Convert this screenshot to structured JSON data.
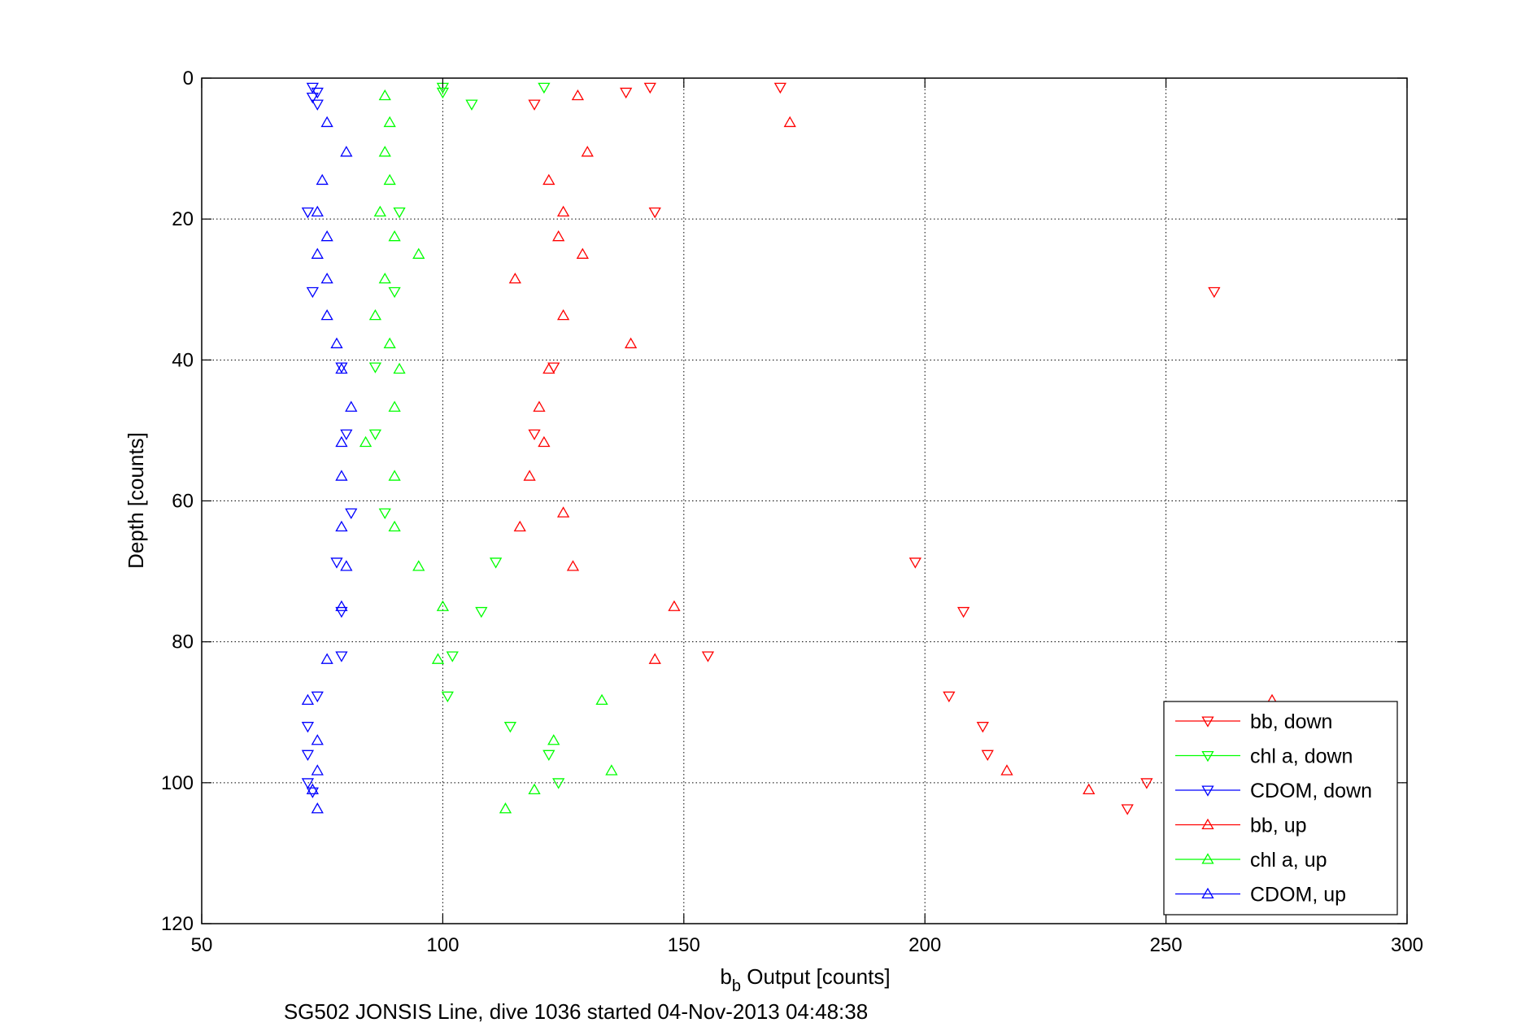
{
  "chart_data": {
    "type": "scatter",
    "title": "",
    "caption": "SG502 JONSIS Line, dive 1036 started 04-Nov-2013 04:48:38",
    "xlabel_main": "b",
    "xlabel_sub": "b",
    "xlabel_rest": " Output [counts]",
    "ylabel": "Depth [counts]",
    "xlim": [
      50,
      300
    ],
    "ylim": [
      0,
      120
    ],
    "y_reversed": true,
    "grid": true,
    "legend_position": "bottom-right",
    "xticks": [
      50,
      100,
      150,
      200,
      250,
      300
    ],
    "yticks": [
      0,
      20,
      40,
      60,
      80,
      100,
      120
    ],
    "series": [
      {
        "name": "bb, down",
        "color": "#ff0000",
        "marker": "triangle-down",
        "points": [
          [
            143,
            1.3
          ],
          [
            170,
            1.3
          ],
          [
            138,
            2.0
          ],
          [
            119,
            3.7
          ],
          [
            144,
            19.0
          ],
          [
            260,
            30.3
          ],
          [
            123,
            41.0
          ],
          [
            119,
            50.5
          ],
          [
            198,
            68.7
          ],
          [
            208,
            75.7
          ],
          [
            155,
            82.0
          ],
          [
            205,
            87.7
          ],
          [
            212,
            92.0
          ],
          [
            213,
            96.0
          ],
          [
            246,
            100.0
          ],
          [
            242,
            103.7
          ]
        ]
      },
      {
        "name": "chl a, down",
        "color": "#00ff00",
        "marker": "triangle-down",
        "points": [
          [
            121,
            1.3
          ],
          [
            100,
            1.3
          ],
          [
            100,
            2.0
          ],
          [
            106,
            3.7
          ],
          [
            91,
            19.0
          ],
          [
            90,
            30.3
          ],
          [
            86,
            41.0
          ],
          [
            86,
            50.5
          ],
          [
            88,
            61.7
          ],
          [
            111,
            68.7
          ],
          [
            108,
            75.7
          ],
          [
            102,
            82.0
          ],
          [
            101,
            87.7
          ],
          [
            114,
            92.0
          ],
          [
            122,
            96.0
          ],
          [
            124,
            100.0
          ]
        ]
      },
      {
        "name": "CDOM, down",
        "color": "#0000ff",
        "marker": "triangle-down",
        "points": [
          [
            73,
            1.3
          ],
          [
            74,
            2.0
          ],
          [
            73,
            2.7
          ],
          [
            74,
            3.7
          ],
          [
            72,
            19.0
          ],
          [
            73,
            30.3
          ],
          [
            79,
            41.0
          ],
          [
            80,
            50.5
          ],
          [
            81,
            61.7
          ],
          [
            78,
            68.7
          ],
          [
            79,
            75.7
          ],
          [
            79,
            82.0
          ],
          [
            74,
            87.7
          ],
          [
            72,
            92.0
          ],
          [
            72,
            96.0
          ],
          [
            72,
            100.0
          ],
          [
            73,
            101.3
          ]
        ]
      },
      {
        "name": "bb, up",
        "color": "#ff0000",
        "marker": "triangle-up",
        "points": [
          [
            128,
            2.5
          ],
          [
            172,
            6.3
          ],
          [
            130,
            10.5
          ],
          [
            122,
            14.5
          ],
          [
            125,
            19.0
          ],
          [
            124,
            22.5
          ],
          [
            129,
            25.0
          ],
          [
            115,
            28.5
          ],
          [
            125,
            33.7
          ],
          [
            139,
            37.7
          ],
          [
            122,
            41.3
          ],
          [
            120,
            46.7
          ],
          [
            121,
            51.7
          ],
          [
            118,
            56.5
          ],
          [
            125,
            61.7
          ],
          [
            116,
            63.7
          ],
          [
            127,
            69.3
          ],
          [
            148,
            75.0
          ],
          [
            144,
            82.5
          ],
          [
            272,
            88.3
          ],
          [
            217,
            98.3
          ],
          [
            234,
            101.0
          ]
        ]
      },
      {
        "name": "chl a, up",
        "color": "#00ff00",
        "marker": "triangle-up",
        "points": [
          [
            88,
            2.5
          ],
          [
            89,
            6.3
          ],
          [
            88,
            10.5
          ],
          [
            89,
            14.5
          ],
          [
            87,
            19.0
          ],
          [
            90,
            22.5
          ],
          [
            95,
            25.0
          ],
          [
            88,
            28.5
          ],
          [
            86,
            33.7
          ],
          [
            89,
            37.7
          ],
          [
            91,
            41.3
          ],
          [
            90,
            46.7
          ],
          [
            84,
            51.7
          ],
          [
            90,
            56.5
          ],
          [
            90,
            63.7
          ],
          [
            95,
            69.3
          ],
          [
            100,
            75.0
          ],
          [
            99,
            82.5
          ],
          [
            133,
            88.3
          ],
          [
            123,
            94.0
          ],
          [
            135,
            98.3
          ],
          [
            119,
            101.0
          ],
          [
            113,
            103.7
          ]
        ]
      },
      {
        "name": "CDOM, up",
        "color": "#0000ff",
        "marker": "triangle-up",
        "points": [
          [
            76,
            6.3
          ],
          [
            80,
            10.5
          ],
          [
            75,
            14.5
          ],
          [
            74,
            19.0
          ],
          [
            76,
            22.5
          ],
          [
            74,
            25.0
          ],
          [
            76,
            28.5
          ],
          [
            76,
            33.7
          ],
          [
            78,
            37.7
          ],
          [
            79,
            41.3
          ],
          [
            81,
            46.7
          ],
          [
            79,
            51.7
          ],
          [
            79,
            56.5
          ],
          [
            79,
            63.7
          ],
          [
            80,
            69.3
          ],
          [
            79,
            75.0
          ],
          [
            76,
            82.5
          ],
          [
            72,
            88.3
          ],
          [
            74,
            94.0
          ],
          [
            74,
            98.3
          ],
          [
            73,
            101.0
          ],
          [
            74,
            103.7
          ]
        ]
      }
    ]
  }
}
